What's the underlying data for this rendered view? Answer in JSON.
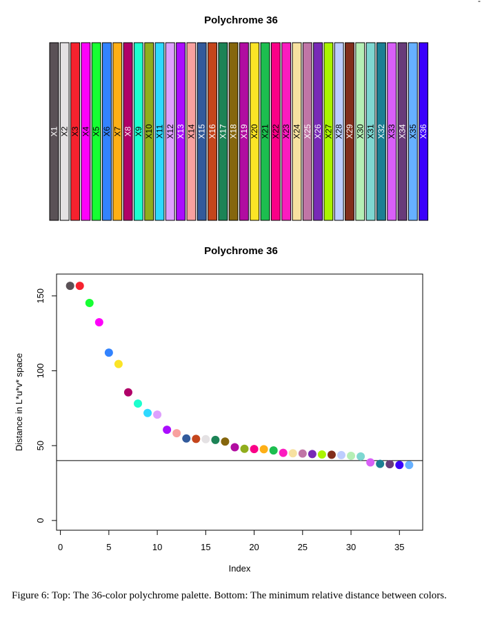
{
  "chart_data": [
    {
      "type": "bar",
      "title": "Polychrome 36",
      "categories": [
        "X1",
        "X2",
        "X3",
        "X4",
        "X5",
        "X6",
        "X7",
        "X8",
        "X9",
        "X10",
        "X11",
        "X12",
        "X13",
        "X14",
        "X15",
        "X16",
        "X17",
        "X18",
        "X19",
        "X20",
        "X21",
        "X22",
        "X23",
        "X24",
        "X25",
        "X26",
        "X27",
        "X28",
        "X29",
        "X30",
        "X31",
        "X32",
        "X33",
        "X34",
        "X35",
        "X36"
      ],
      "colors": [
        "#5A5156",
        "#E4E1E3",
        "#F6222E",
        "#FE00FA",
        "#16FF32",
        "#3283FE",
        "#FEAF16",
        "#B00068",
        "#1CFFCE",
        "#90AD1C",
        "#2ED9FF",
        "#DEA0FD",
        "#AA0DFE",
        "#F8A19F",
        "#325A9B",
        "#C4451C",
        "#1C8356",
        "#85660D",
        "#B10DA1",
        "#FBE426",
        "#1CBE4F",
        "#FA0087",
        "#FC1CBF",
        "#F7E1A0",
        "#C075A6",
        "#782AB6",
        "#AAF400",
        "#BDCDFF",
        "#822E1C",
        "#B5EFB5",
        "#7ED7D1",
        "#1C7F93",
        "#D85FF7",
        "#683B79",
        "#66B0FF",
        "#3B00FB"
      ],
      "label_colors": [
        "white",
        "black",
        "black",
        "black",
        "black",
        "black",
        "black",
        "white",
        "black",
        "black",
        "black",
        "black",
        "white",
        "black",
        "white",
        "white",
        "white",
        "white",
        "white",
        "black",
        "black",
        "black",
        "black",
        "black",
        "white",
        "white",
        "black",
        "black",
        "white",
        "black",
        "black",
        "white",
        "black",
        "white",
        "black",
        "white"
      ],
      "values": [
        1,
        1,
        1,
        1,
        1,
        1,
        1,
        1,
        1,
        1,
        1,
        1,
        1,
        1,
        1,
        1,
        1,
        1,
        1,
        1,
        1,
        1,
        1,
        1,
        1,
        1,
        1,
        1,
        1,
        1,
        1,
        1,
        1,
        1,
        1,
        1
      ]
    },
    {
      "type": "scatter",
      "title": "Polychrome 36",
      "xlabel": "Index",
      "ylabel": "Distance in L*u*v* space",
      "xlim": [
        -0.4,
        37.4
      ],
      "ylim": [
        -6.5,
        164.6
      ],
      "xticks": [
        0,
        5,
        10,
        15,
        20,
        25,
        30,
        35
      ],
      "yticks": [
        0,
        50,
        100,
        150
      ],
      "hline": 40,
      "x": [
        1,
        2,
        3,
        4,
        5,
        6,
        7,
        8,
        9,
        10,
        11,
        12,
        13,
        14,
        15,
        16,
        17,
        18,
        19,
        20,
        21,
        22,
        23,
        24,
        25,
        26,
        27,
        28,
        29,
        30,
        31,
        32,
        33,
        34,
        35,
        36
      ],
      "y": [
        156.7,
        156.7,
        145.3,
        132.4,
        112.1,
        104.5,
        85.6,
        78.1,
        71.8,
        70.7,
        60.6,
        58.3,
        54.8,
        54.5,
        54.3,
        53.8,
        52.7,
        48.9,
        47.9,
        47.7,
        47.6,
        46.8,
        45.2,
        44.9,
        44.7,
        44.4,
        44.1,
        43.9,
        43.7,
        43.2,
        42.8,
        38.8,
        37.8,
        37.6,
        37.1,
        37.1
      ],
      "colors": [
        "#5A5156",
        "#F6222E",
        "#16FF32",
        "#FE00FA",
        "#3283FE",
        "#FBE426",
        "#B00068",
        "#1CFFCE",
        "#2ED9FF",
        "#DEA0FD",
        "#AA0DFE",
        "#F8A19F",
        "#325A9B",
        "#C4451C",
        "#E4E1E3",
        "#1C8356",
        "#85660D",
        "#B10DA1",
        "#90AD1C",
        "#FA0087",
        "#FEAF16",
        "#1CBE4F",
        "#FC1CBF",
        "#F7E1A0",
        "#C075A6",
        "#782AB6",
        "#AAF400",
        "#822E1C",
        "#BDCDFF",
        "#B5EFB5",
        "#7ED7D1",
        "#D85FF7",
        "#1C7F93",
        "#683B79",
        "#3B00FB",
        "#66B0FF"
      ]
    }
  ],
  "caption": "Figure 6: Top: The 36-color polychrome palette. Bottom: The minimum relative distance between colors.",
  "corner_mark": "-"
}
